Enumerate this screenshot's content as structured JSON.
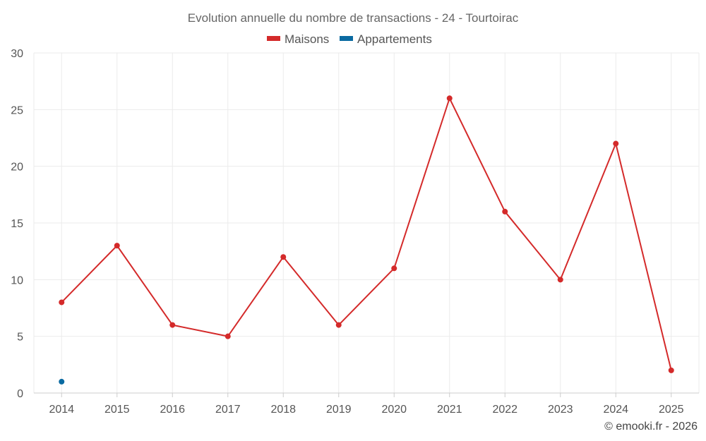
{
  "chart_data": {
    "type": "line",
    "title": "Evolution annuelle du nombre de transactions - 24 - Tourtoirac",
    "categories": [
      "2014",
      "2015",
      "2016",
      "2017",
      "2018",
      "2019",
      "2020",
      "2021",
      "2022",
      "2023",
      "2024",
      "2025"
    ],
    "series": [
      {
        "name": "Maisons",
        "color": "#d42a2a",
        "values": [
          8,
          13,
          6,
          5,
          12,
          6,
          11,
          26,
          16,
          10,
          22,
          2
        ]
      },
      {
        "name": "Appartements",
        "color": "#0a6aa1",
        "values": [
          1,
          null,
          null,
          null,
          null,
          null,
          null,
          null,
          null,
          null,
          null,
          null
        ]
      }
    ],
    "ylim": [
      0,
      30
    ],
    "yticks": [
      0,
      5,
      10,
      15,
      20,
      25,
      30
    ],
    "grid": true,
    "legend_position": "top-center",
    "xlabel": "",
    "ylabel": ""
  },
  "credit": "© emooki.fr - 2026"
}
